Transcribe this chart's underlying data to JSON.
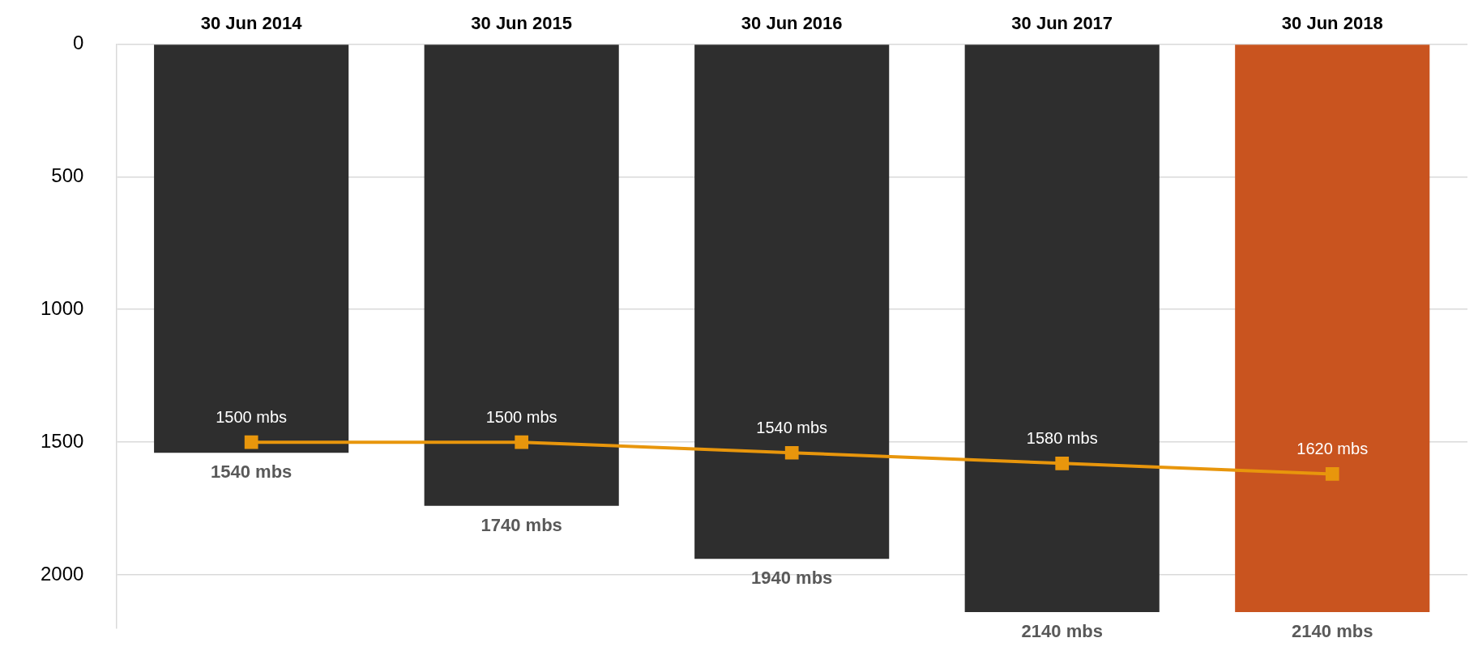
{
  "chart_data": {
    "type": "bar",
    "categories": [
      "30 Jun 2014",
      "30 Jun 2015",
      "30 Jun 2016",
      "30 Jun 2017",
      "30 Jun 2018"
    ],
    "series": [
      {
        "colors": [
          "#2e2e2e",
          "#2e2e2e",
          "#2e2e2e",
          "#2e2e2e",
          "#c9541f"
        ],
        "values": [
          1540,
          1740,
          1940,
          2140,
          2140
        ],
        "value_labels": [
          "1540 mbs",
          "1740 mbs",
          "1940 mbs",
          "2140 mbs",
          "2140 mbs"
        ]
      },
      {
        "type": "line",
        "color": "#e8960c",
        "values": [
          1500,
          1500,
          1540,
          1580,
          1620
        ],
        "value_labels": [
          "1500 mbs",
          "1500 mbs",
          "1540 mbs",
          "1580 mbs",
          "1620 mbs"
        ]
      }
    ],
    "ylim": [
      2200,
      0
    ],
    "yticks": [
      0,
      500,
      1000,
      1500,
      2000
    ],
    "grid": "y",
    "legend": false,
    "marker": "square",
    "line_style": "solid"
  }
}
